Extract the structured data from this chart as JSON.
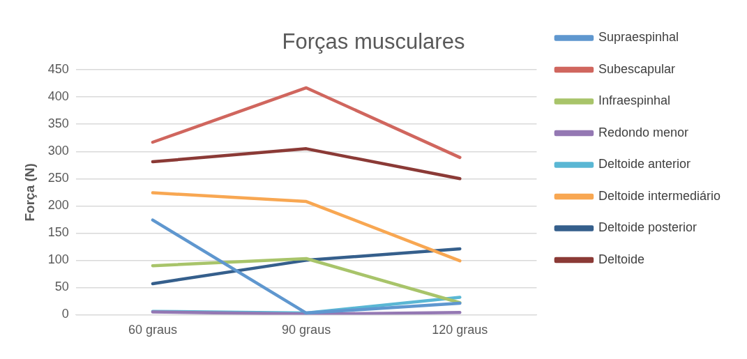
{
  "chart_data": {
    "type": "line",
    "title": "Forças musculares",
    "ylabel": "Força (N)",
    "categories": [
      "60 graus",
      "90 graus",
      "120 graus"
    ],
    "series": [
      {
        "name": "Supraespinhal",
        "color": "#5f97cf",
        "values": [
          174,
          3,
          21
        ]
      },
      {
        "name": "Subescapular",
        "color": "#d0665e",
        "values": [
          317,
          417,
          289
        ]
      },
      {
        "name": "Infraespinhal",
        "color": "#a8c46a",
        "values": [
          90,
          103,
          22
        ]
      },
      {
        "name": "Redondo menor",
        "color": "#9478b3",
        "values": [
          5,
          1,
          4
        ]
      },
      {
        "name": "Deltoide anterior",
        "color": "#5ab7d4",
        "values": [
          6,
          3,
          32
        ]
      },
      {
        "name": "Deltoide intermediário",
        "color": "#f8a752",
        "values": [
          224,
          208,
          99
        ]
      },
      {
        "name": "Deltoide posterior",
        "color": "#355f8c",
        "values": [
          57,
          100,
          121
        ]
      },
      {
        "name": "Deltoide",
        "color": "#8b3a36",
        "values": [
          281,
          305,
          250
        ]
      }
    ],
    "ylim": [
      0,
      450
    ],
    "yticks": [
      0,
      50,
      100,
      150,
      200,
      250,
      300,
      350,
      400,
      450
    ],
    "grid": "y",
    "legend": "right",
    "marker": "none",
    "line_style": "solid"
  }
}
